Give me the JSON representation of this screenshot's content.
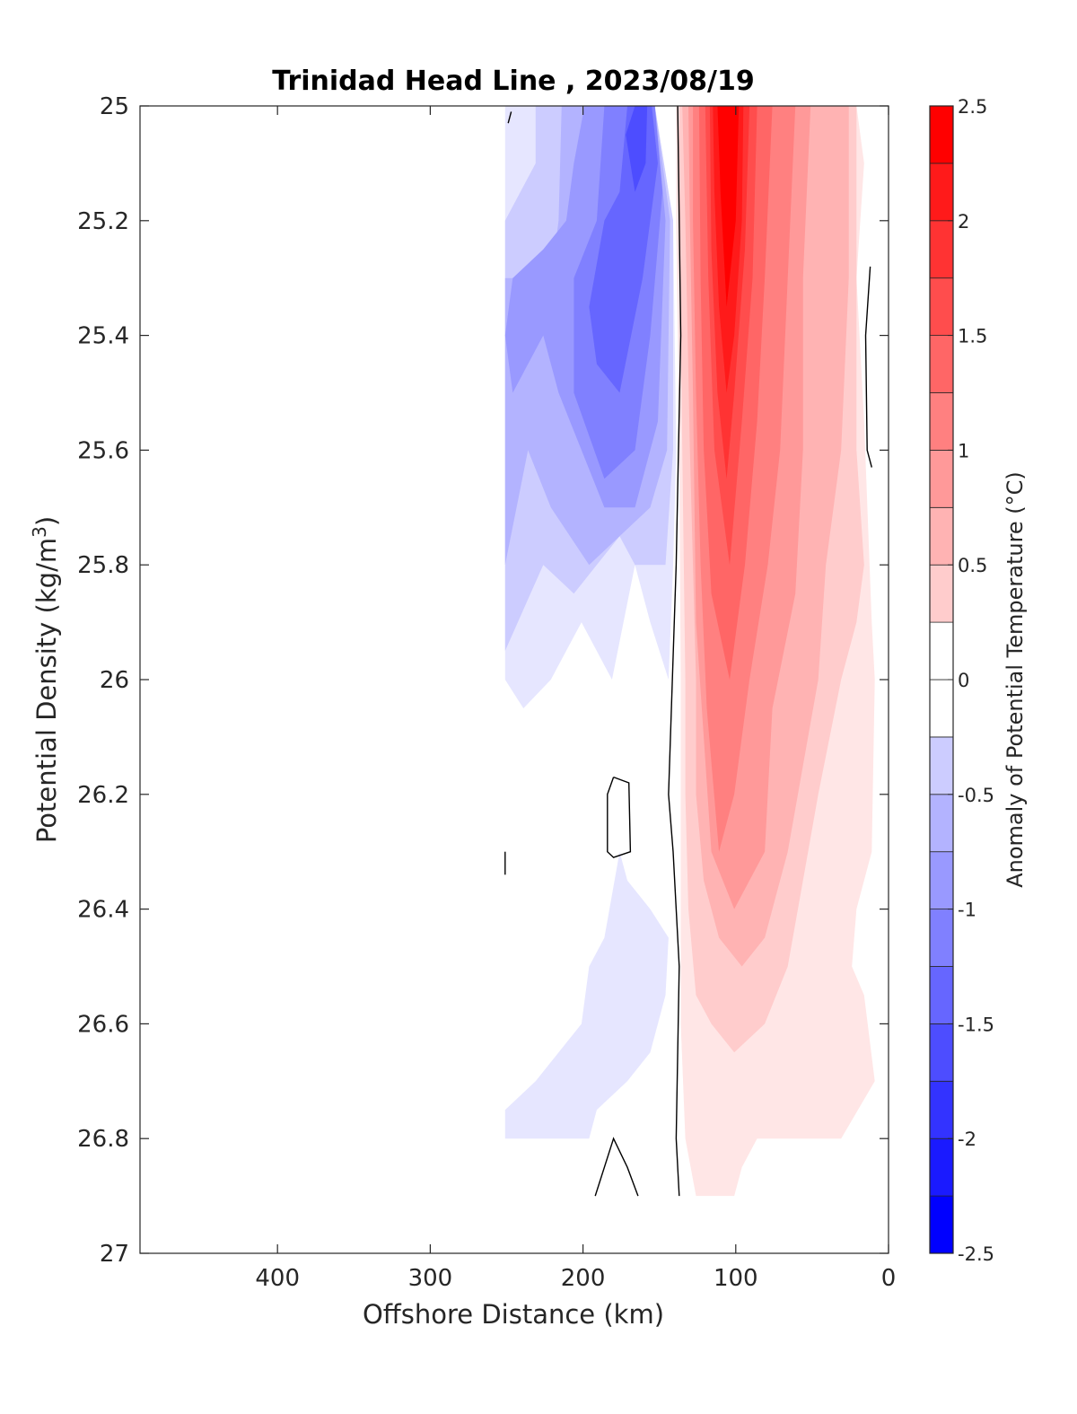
{
  "chart_data": {
    "type": "heatmap",
    "title": "Trinidad Head Line , 2023/08/19",
    "xlabel": "Offshore Distance (km)",
    "ylabel": "Potential Density (kg/m",
    "ylabel_superscript": "3",
    "ylabel_suffix": ")",
    "colorbar_label": "Anomaly of Potential Temperature (°C)",
    "xlim": [
      490,
      0
    ],
    "x_reversed": true,
    "ylim": [
      25,
      27
    ],
    "y_reversed": true,
    "x_ticks": [
      400,
      300,
      200,
      100,
      0
    ],
    "y_ticks": [
      25,
      25.2,
      25.4,
      25.6,
      25.8,
      26,
      26.2,
      26.4,
      26.6,
      26.8,
      27
    ],
    "y_tick_labels": [
      "25",
      "25.2",
      "25.4",
      "25.6",
      "25.8",
      "26",
      "26.2",
      "26.4",
      "26.6",
      "26.8",
      "27"
    ],
    "colorbar_range": [
      -2.5,
      2.5
    ],
    "colorbar_ticks": [
      -2.5,
      -2,
      -1.5,
      -1,
      -0.5,
      0,
      0.5,
      1,
      1.5,
      2,
      2.5
    ],
    "colorbar_tick_labels": [
      "-2.5",
      "-2",
      "-1.5",
      "-1",
      "-0.5",
      "0",
      "0.5",
      "1",
      "1.5",
      "2",
      "2.5"
    ],
    "contour_levels_step": 0.25,
    "colors": {
      "negative_extreme": "#0000ff",
      "neutral": "#ffffff",
      "positive_extreme": "#ff0000",
      "zero_contour": "#000000"
    },
    "regions": [
      {
        "kind": "negative",
        "anomaly": -0.25,
        "polygon": [
          [
            251,
            25.0
          ],
          [
            153,
            25.0
          ],
          [
            141,
            25.2
          ],
          [
            139,
            25.6
          ],
          [
            141,
            25.8
          ],
          [
            144,
            26.0
          ],
          [
            156,
            25.9
          ],
          [
            166,
            25.8
          ],
          [
            181,
            26.0
          ],
          [
            201,
            25.9
          ],
          [
            221,
            26.0
          ],
          [
            239,
            26.05
          ],
          [
            251,
            26.0
          ]
        ]
      },
      {
        "kind": "negative",
        "anomaly": -0.5,
        "polygon": [
          [
            231,
            25.0
          ],
          [
            153,
            25.0
          ],
          [
            141,
            25.2
          ],
          [
            141,
            25.6
          ],
          [
            146,
            25.8
          ],
          [
            166,
            25.8
          ],
          [
            176,
            25.75
          ],
          [
            206,
            25.85
          ],
          [
            226,
            25.8
          ],
          [
            251,
            25.95
          ],
          [
            251,
            25.2
          ],
          [
            231,
            25.1
          ]
        ]
      },
      {
        "kind": "negative",
        "anomaly": -0.75,
        "polygon": [
          [
            214,
            25.0
          ],
          [
            153,
            25.0
          ],
          [
            143,
            25.2
          ],
          [
            145,
            25.6
          ],
          [
            156,
            25.7
          ],
          [
            176,
            25.75
          ],
          [
            196,
            25.8
          ],
          [
            221,
            25.7
          ],
          [
            236,
            25.6
          ],
          [
            251,
            25.8
          ],
          [
            251,
            25.3
          ],
          [
            221,
            25.3
          ],
          [
            216,
            25.2
          ]
        ]
      },
      {
        "kind": "negative",
        "anomaly": -1.0,
        "polygon": [
          [
            199,
            25.0
          ],
          [
            153,
            25.0
          ],
          [
            146,
            25.2
          ],
          [
            151,
            25.55
          ],
          [
            166,
            25.7
          ],
          [
            186,
            25.7
          ],
          [
            201,
            25.6
          ],
          [
            216,
            25.5
          ],
          [
            226,
            25.4
          ],
          [
            246,
            25.5
          ],
          [
            251,
            25.4
          ],
          [
            246,
            25.3
          ],
          [
            226,
            25.25
          ],
          [
            211,
            25.2
          ],
          [
            206,
            25.1
          ]
        ]
      },
      {
        "kind": "negative",
        "anomaly": -1.25,
        "polygon": [
          [
            186,
            25.0
          ],
          [
            153,
            25.0
          ],
          [
            148,
            25.15
          ],
          [
            156,
            25.4
          ],
          [
            166,
            25.6
          ],
          [
            186,
            25.65
          ],
          [
            206,
            25.5
          ],
          [
            206,
            25.3
          ],
          [
            191,
            25.2
          ]
        ]
      },
      {
        "kind": "negative",
        "anomaly": -1.5,
        "polygon": [
          [
            171,
            25.0
          ],
          [
            155,
            25.0
          ],
          [
            151,
            25.1
          ],
          [
            161,
            25.3
          ],
          [
            176,
            25.5
          ],
          [
            191,
            25.45
          ],
          [
            196,
            25.35
          ],
          [
            186,
            25.2
          ],
          [
            176,
            25.15
          ]
        ]
      },
      {
        "kind": "negative",
        "anomaly": -1.75,
        "polygon": [
          [
            166,
            25.0
          ],
          [
            158,
            25.0
          ],
          [
            159,
            25.1
          ],
          [
            166,
            25.15
          ],
          [
            172,
            25.05
          ]
        ]
      },
      {
        "kind": "negative",
        "anomaly": -0.25,
        "polygon": [
          [
            251,
            26.8
          ],
          [
            196,
            26.8
          ],
          [
            191,
            26.75
          ],
          [
            171,
            26.7
          ],
          [
            156,
            26.65
          ],
          [
            146,
            26.55
          ],
          [
            144,
            26.45
          ],
          [
            156,
            26.4
          ],
          [
            171,
            26.35
          ],
          [
            176,
            26.3
          ],
          [
            186,
            26.45
          ],
          [
            196,
            26.5
          ],
          [
            201,
            26.6
          ],
          [
            231,
            26.7
          ],
          [
            251,
            26.75
          ]
        ]
      },
      {
        "kind": "positive",
        "anomaly": 0.25,
        "polygon": [
          [
            139,
            25.0
          ],
          [
            21,
            25.0
          ],
          [
            16,
            25.1
          ],
          [
            21,
            25.3
          ],
          [
            16,
            25.55
          ],
          [
            11,
            25.9
          ],
          [
            9,
            26.0
          ],
          [
            11,
            26.3
          ],
          [
            21,
            26.4
          ],
          [
            24,
            26.5
          ],
          [
            16,
            26.55
          ],
          [
            9,
            26.7
          ],
          [
            31,
            26.8
          ],
          [
            31,
            26.8
          ],
          [
            86,
            26.8
          ],
          [
            96,
            26.85
          ],
          [
            101,
            26.9
          ],
          [
            126,
            26.9
          ],
          [
            133,
            26.8
          ],
          [
            136,
            26.6
          ],
          [
            136,
            26.4
          ],
          [
            136,
            26.2
          ],
          [
            136,
            26.0
          ],
          [
            137,
            25.6
          ],
          [
            139,
            25.2
          ]
        ]
      },
      {
        "kind": "positive",
        "anomaly": 0.5,
        "polygon": [
          [
            137,
            25.0
          ],
          [
            21,
            25.0
          ],
          [
            21,
            25.3
          ],
          [
            21,
            25.6
          ],
          [
            16,
            25.8
          ],
          [
            21,
            25.9
          ],
          [
            31,
            26.0
          ],
          [
            46,
            26.2
          ],
          [
            56,
            26.35
          ],
          [
            66,
            26.5
          ],
          [
            81,
            26.6
          ],
          [
            101,
            26.65
          ],
          [
            116,
            26.6
          ],
          [
            126,
            26.55
          ],
          [
            131,
            26.4
          ],
          [
            133,
            26.2
          ],
          [
            133,
            26.0
          ],
          [
            135,
            25.6
          ],
          [
            137,
            25.2
          ]
        ]
      },
      {
        "kind": "positive",
        "anomaly": 0.75,
        "polygon": [
          [
            135,
            25.0
          ],
          [
            26,
            25.0
          ],
          [
            26,
            25.3
          ],
          [
            31,
            25.6
          ],
          [
            41,
            25.8
          ],
          [
            46,
            26.0
          ],
          [
            56,
            26.15
          ],
          [
            66,
            26.3
          ],
          [
            81,
            26.45
          ],
          [
            96,
            26.5
          ],
          [
            111,
            26.45
          ],
          [
            121,
            26.35
          ],
          [
            126,
            26.2
          ],
          [
            126,
            26.0
          ],
          [
            130,
            25.6
          ],
          [
            133,
            25.2
          ]
        ]
      },
      {
        "kind": "positive",
        "anomaly": 1.0,
        "polygon": [
          [
            131,
            25.0
          ],
          [
            51,
            25.0
          ],
          [
            56,
            25.3
          ],
          [
            56,
            25.6
          ],
          [
            61,
            25.85
          ],
          [
            76,
            26.05
          ],
          [
            81,
            26.3
          ],
          [
            101,
            26.4
          ],
          [
            116,
            26.3
          ],
          [
            121,
            26.1
          ],
          [
            126,
            25.9
          ],
          [
            128,
            25.5
          ],
          [
            130,
            25.2
          ]
        ]
      },
      {
        "kind": "positive",
        "anomaly": 1.25,
        "polygon": [
          [
            128,
            25.0
          ],
          [
            61,
            25.0
          ],
          [
            66,
            25.3
          ],
          [
            71,
            25.6
          ],
          [
            79,
            25.8
          ],
          [
            91,
            26.0
          ],
          [
            101,
            26.2
          ],
          [
            111,
            26.3
          ],
          [
            119,
            26.05
          ],
          [
            123,
            25.8
          ],
          [
            126,
            25.5
          ],
          [
            128,
            25.2
          ]
        ]
      },
      {
        "kind": "positive",
        "anomaly": 1.5,
        "polygon": [
          [
            124,
            25.0
          ],
          [
            76,
            25.0
          ],
          [
            81,
            25.3
          ],
          [
            86,
            25.55
          ],
          [
            94,
            25.8
          ],
          [
            104,
            26.0
          ],
          [
            116,
            25.85
          ],
          [
            121,
            25.6
          ],
          [
            123,
            25.3
          ]
        ]
      },
      {
        "kind": "positive",
        "anomaly": 1.75,
        "polygon": [
          [
            120,
            25.0
          ],
          [
            86,
            25.0
          ],
          [
            89,
            25.3
          ],
          [
            96,
            25.55
          ],
          [
            104,
            25.8
          ],
          [
            114,
            25.6
          ],
          [
            118,
            25.3
          ]
        ]
      },
      {
        "kind": "positive",
        "anomaly": 2.0,
        "polygon": [
          [
            117,
            25.0
          ],
          [
            91,
            25.0
          ],
          [
            94,
            25.25
          ],
          [
            101,
            25.5
          ],
          [
            106,
            25.65
          ],
          [
            112,
            25.5
          ],
          [
            116,
            25.25
          ]
        ]
      },
      {
        "kind": "positive",
        "anomaly": 2.25,
        "polygon": [
          [
            115,
            25.0
          ],
          [
            95,
            25.0
          ],
          [
            96,
            25.2
          ],
          [
            101,
            25.4
          ],
          [
            106,
            25.5
          ],
          [
            111,
            25.35
          ],
          [
            114,
            25.15
          ]
        ]
      },
      {
        "kind": "positive",
        "anomaly": 2.5,
        "polygon": [
          [
            112,
            25.0
          ],
          [
            98,
            25.0
          ],
          [
            100,
            25.2
          ],
          [
            106,
            25.35
          ],
          [
            110,
            25.15
          ]
        ]
      }
    ],
    "zero_contours": [
      [
        [
          138,
          25.0
        ],
        [
          136,
          25.4
        ],
        [
          139,
          25.8
        ],
        [
          144,
          26.2
        ],
        [
          141,
          26.3
        ],
        [
          137,
          26.5
        ],
        [
          139,
          26.8
        ],
        [
          137,
          26.9
        ]
      ],
      [
        [
          12,
          25.28
        ],
        [
          15,
          25.4
        ],
        [
          14,
          25.6
        ],
        [
          11,
          25.63
        ]
      ],
      [
        [
          180,
          26.17
        ],
        [
          170,
          26.18
        ],
        [
          169,
          26.3
        ],
        [
          180,
          26.31
        ],
        [
          184,
          26.3
        ],
        [
          184,
          26.2
        ],
        [
          180,
          26.17
        ]
      ],
      [
        [
          192,
          26.9
        ],
        [
          180,
          26.8
        ],
        [
          171,
          26.85
        ],
        [
          164,
          26.9
        ]
      ],
      [
        [
          251,
          26.3
        ],
        [
          251,
          26.34
        ]
      ],
      [
        [
          249,
          25.03
        ],
        [
          247,
          25.01
        ]
      ]
    ]
  }
}
